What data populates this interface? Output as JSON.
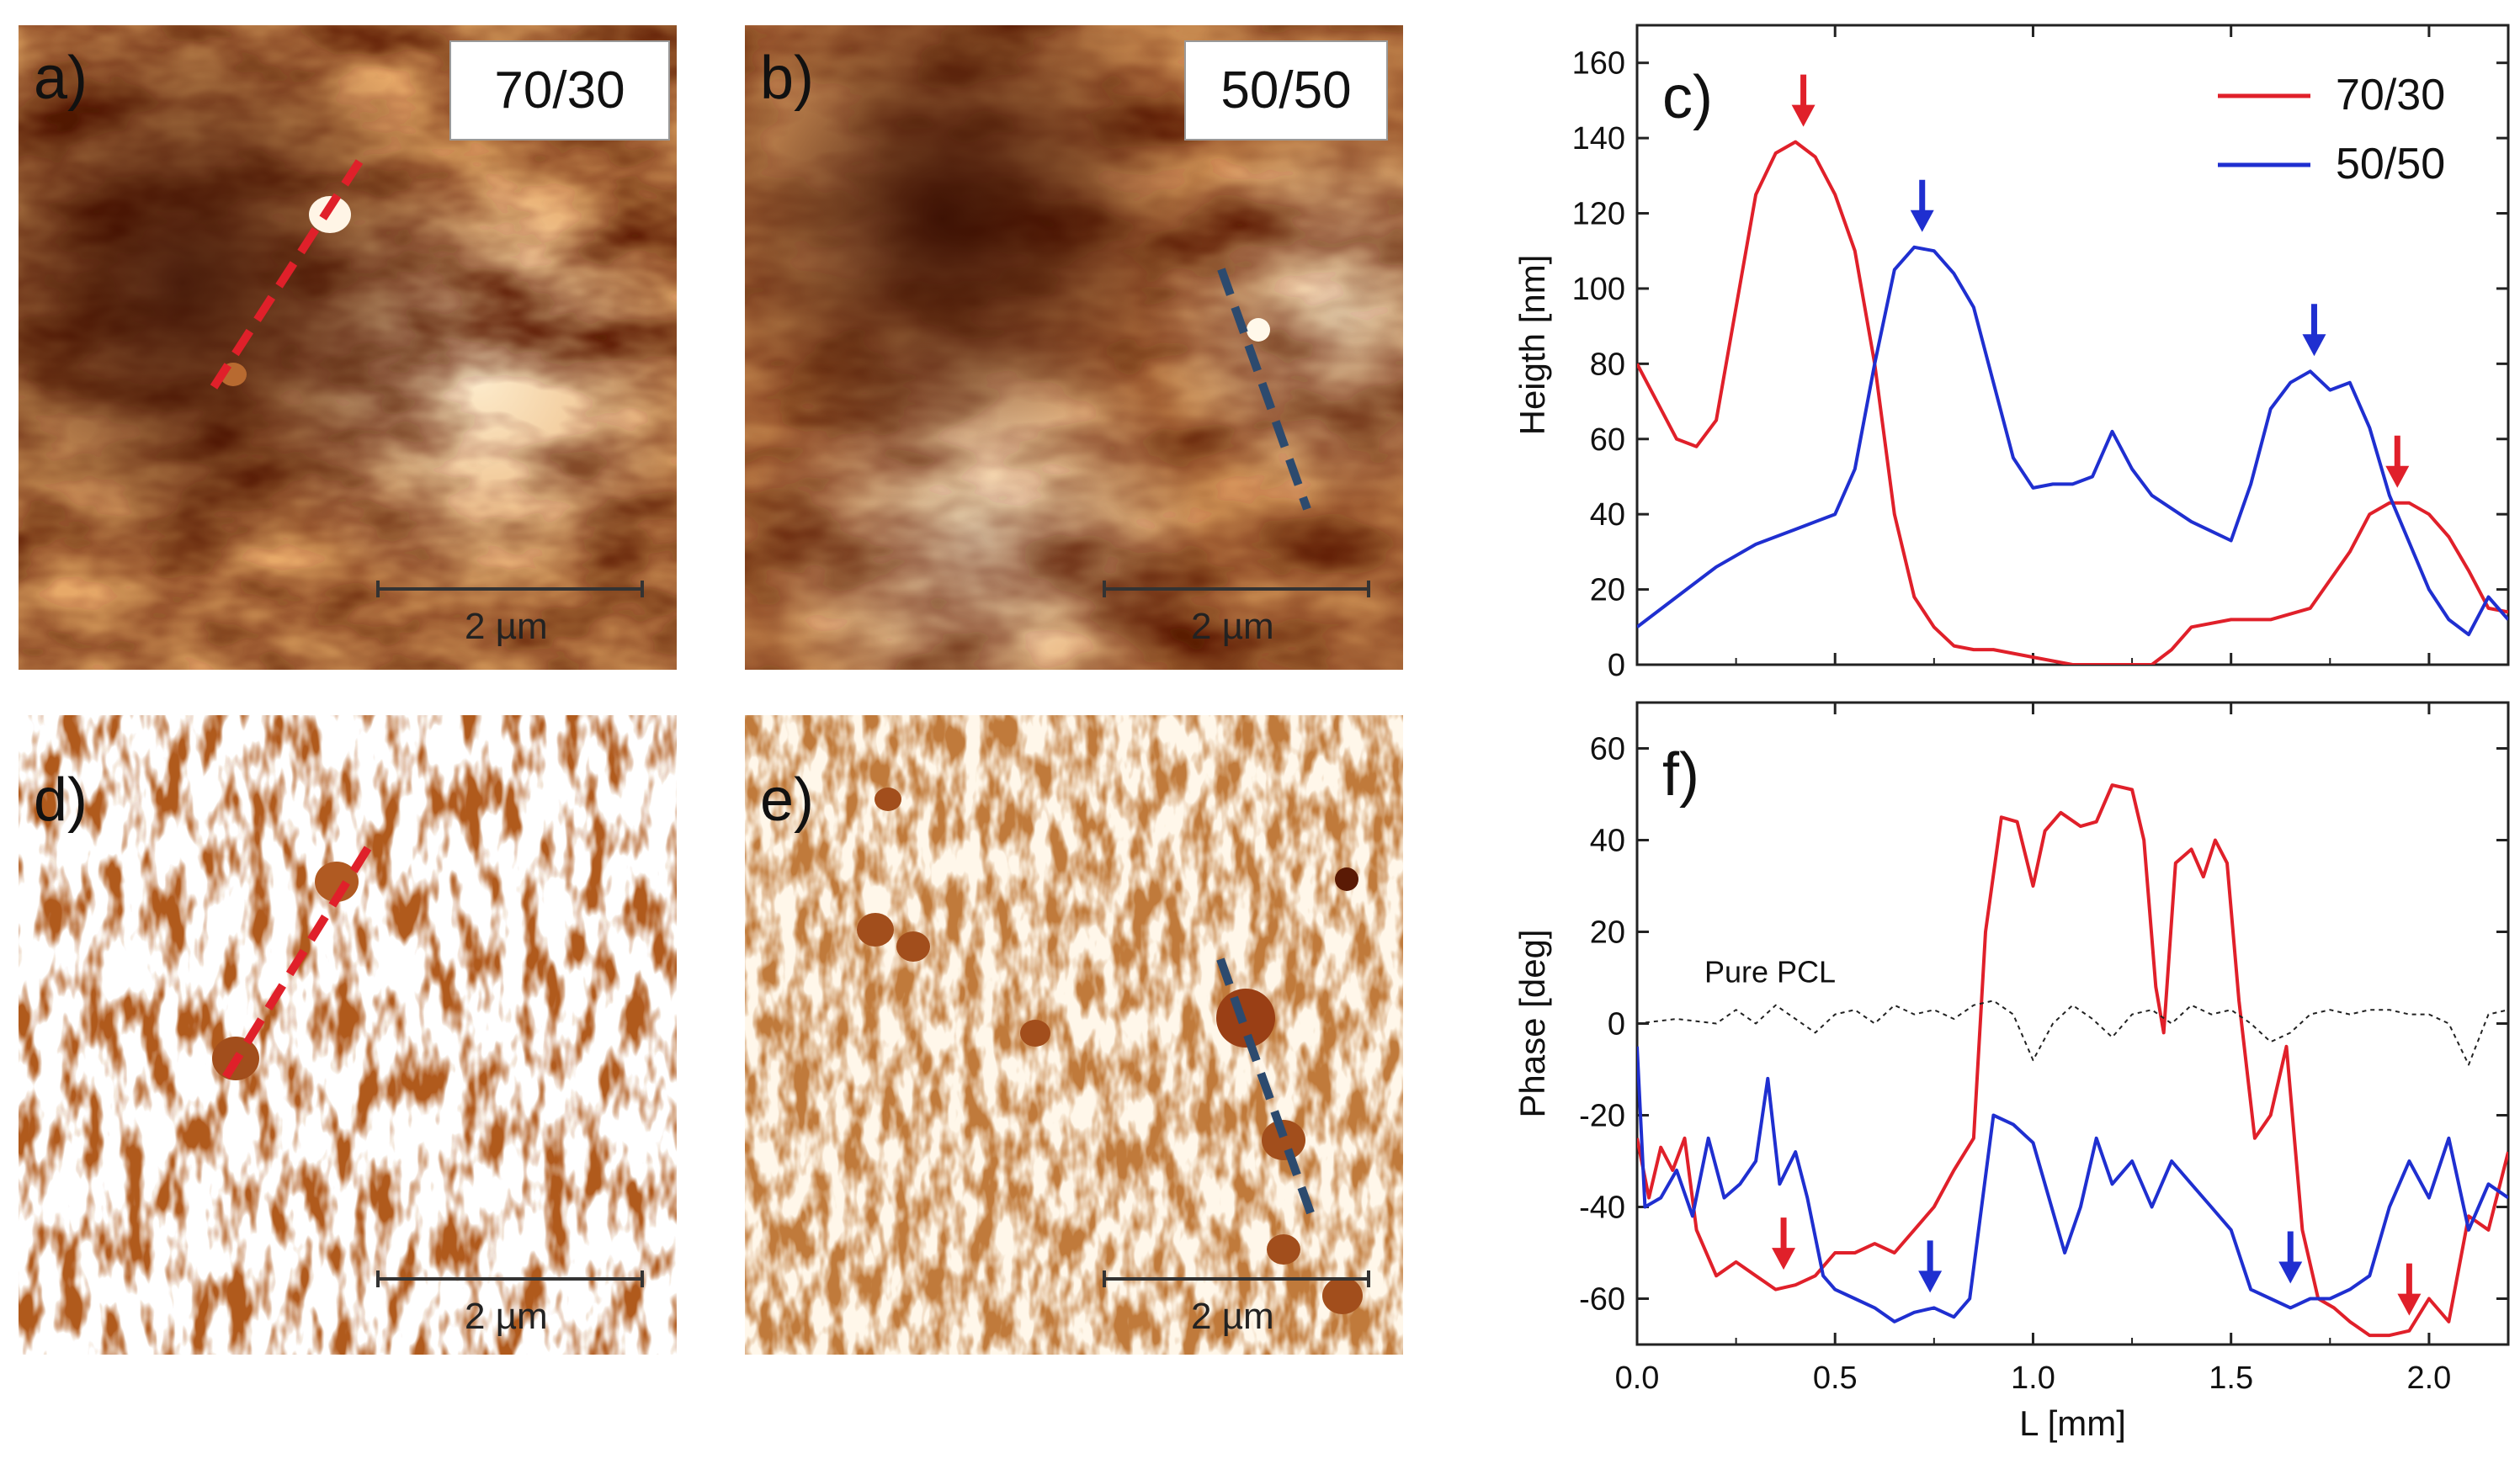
{
  "panels": {
    "a": {
      "label": "a)",
      "ratio": "70/30",
      "scale": "2 µm"
    },
    "b": {
      "label": "b)",
      "ratio": "50/50",
      "scale": "2 µm"
    },
    "d": {
      "label": "d)",
      "scale": "2 µm"
    },
    "e": {
      "label": "e)",
      "scale": "2 µm"
    }
  },
  "colors": {
    "red": "#e0202a",
    "blue": "#1f2fd0",
    "dash_blue": "#2c4a6e",
    "afm_dark": "#4a1505",
    "afm_light": "#ffe9c8",
    "phase_dark": "#a0501a",
    "phase_light": "#fff8ee"
  },
  "chart_data": [
    {
      "type": "line",
      "panel_label": "c)",
      "ylabel": "Heigth [nm]",
      "xlabel": "",
      "xlim": [
        0,
        2.2
      ],
      "ylim": [
        0,
        170
      ],
      "xticks": [
        0.0,
        0.5,
        1.0,
        1.5,
        2.0
      ],
      "yticks": [
        0,
        20,
        40,
        60,
        80,
        100,
        120,
        140,
        160
      ],
      "legend_position": "top-right",
      "series": [
        {
          "name": "70/30",
          "color": "#e0202a",
          "x": [
            0.0,
            0.05,
            0.1,
            0.15,
            0.2,
            0.25,
            0.3,
            0.35,
            0.4,
            0.45,
            0.5,
            0.55,
            0.6,
            0.65,
            0.7,
            0.75,
            0.8,
            0.85,
            0.9,
            1.0,
            1.1,
            1.2,
            1.25,
            1.3,
            1.35,
            1.4,
            1.5,
            1.6,
            1.7,
            1.8,
            1.85,
            1.9,
            1.95,
            2.0,
            2.05,
            2.1,
            2.15,
            2.2
          ],
          "y": [
            80,
            70,
            60,
            58,
            65,
            95,
            125,
            136,
            139,
            135,
            125,
            110,
            80,
            40,
            18,
            10,
            5,
            4,
            4,
            2,
            0,
            0,
            0,
            0,
            4,
            10,
            12,
            12,
            15,
            30,
            40,
            43,
            43,
            40,
            34,
            25,
            15,
            14
          ]
        },
        {
          "name": "50/50",
          "color": "#1f2fd0",
          "x": [
            0.0,
            0.1,
            0.2,
            0.3,
            0.4,
            0.5,
            0.55,
            0.6,
            0.65,
            0.7,
            0.75,
            0.8,
            0.85,
            0.9,
            0.95,
            1.0,
            1.05,
            1.1,
            1.15,
            1.2,
            1.25,
            1.3,
            1.4,
            1.5,
            1.55,
            1.6,
            1.65,
            1.7,
            1.75,
            1.8,
            1.85,
            1.9,
            2.0,
            2.05,
            2.1,
            2.15,
            2.2
          ],
          "y": [
            10,
            18,
            26,
            32,
            36,
            40,
            52,
            80,
            105,
            111,
            110,
            104,
            95,
            75,
            55,
            47,
            48,
            48,
            50,
            62,
            52,
            45,
            38,
            33,
            48,
            68,
            75,
            78,
            73,
            75,
            63,
            45,
            20,
            12,
            8,
            18,
            12
          ]
        }
      ],
      "arrows": [
        {
          "series": "70/30",
          "x": 0.42,
          "y": 139
        },
        {
          "series": "50/50",
          "x": 0.72,
          "y": 111
        },
        {
          "series": "50/50",
          "x": 1.71,
          "y": 78
        },
        {
          "series": "70/30",
          "x": 1.92,
          "y": 43
        }
      ]
    },
    {
      "type": "line",
      "panel_label": "f)",
      "ylabel": "Phase [deg]",
      "xlabel": "L [mm]",
      "xlim": [
        0,
        2.2
      ],
      "ylim": [
        -70,
        70
      ],
      "xticks": [
        0.0,
        0.5,
        1.0,
        1.5,
        2.0
      ],
      "xticklabels": [
        "0.0",
        "0.5",
        "1.0",
        "1.5",
        "2.0"
      ],
      "yticks": [
        -60,
        -40,
        -20,
        0,
        20,
        40,
        60
      ],
      "annotation": "Pure PCL",
      "series": [
        {
          "name": "70/30",
          "color": "#e0202a",
          "x": [
            0.0,
            0.03,
            0.06,
            0.09,
            0.12,
            0.15,
            0.2,
            0.25,
            0.3,
            0.35,
            0.4,
            0.45,
            0.5,
            0.55,
            0.6,
            0.65,
            0.7,
            0.75,
            0.8,
            0.85,
            0.88,
            0.92,
            0.96,
            1.0,
            1.03,
            1.07,
            1.12,
            1.16,
            1.2,
            1.25,
            1.28,
            1.31,
            1.33,
            1.36,
            1.4,
            1.43,
            1.46,
            1.49,
            1.52,
            1.56,
            1.6,
            1.64,
            1.68,
            1.72,
            1.76,
            1.8,
            1.85,
            1.9,
            1.95,
            2.0,
            2.05,
            2.1,
            2.15,
            2.2
          ],
          "y": [
            -25,
            -38,
            -27,
            -32,
            -25,
            -45,
            -55,
            -52,
            -55,
            -58,
            -57,
            -55,
            -50,
            -50,
            -48,
            -50,
            -45,
            -40,
            -32,
            -25,
            20,
            45,
            44,
            30,
            42,
            46,
            43,
            44,
            52,
            51,
            40,
            8,
            -2,
            35,
            38,
            32,
            40,
            35,
            5,
            -25,
            -20,
            -5,
            -45,
            -60,
            -62,
            -65,
            -68,
            -68,
            -67,
            -60,
            -65,
            -42,
            -45,
            -28
          ]
        },
        {
          "name": "50/50",
          "color": "#1f2fd0",
          "x": [
            0.0,
            0.02,
            0.06,
            0.1,
            0.14,
            0.18,
            0.22,
            0.26,
            0.3,
            0.33,
            0.36,
            0.4,
            0.43,
            0.47,
            0.5,
            0.55,
            0.6,
            0.65,
            0.7,
            0.75,
            0.8,
            0.84,
            0.87,
            0.9,
            0.95,
            1.0,
            1.04,
            1.08,
            1.12,
            1.16,
            1.2,
            1.25,
            1.3,
            1.35,
            1.4,
            1.45,
            1.5,
            1.55,
            1.6,
            1.65,
            1.7,
            1.75,
            1.8,
            1.85,
            1.9,
            1.95,
            2.0,
            2.05,
            2.1,
            2.15,
            2.2
          ],
          "y": [
            -5,
            -40,
            -38,
            -32,
            -42,
            -25,
            -38,
            -35,
            -30,
            -12,
            -35,
            -28,
            -38,
            -55,
            -58,
            -60,
            -62,
            -65,
            -63,
            -62,
            -64,
            -60,
            -40,
            -20,
            -22,
            -26,
            -38,
            -50,
            -40,
            -25,
            -35,
            -30,
            -40,
            -30,
            -35,
            -40,
            -45,
            -58,
            -60,
            -62,
            -60,
            -60,
            -58,
            -55,
            -40,
            -30,
            -38,
            -25,
            -45,
            -35,
            -38
          ]
        },
        {
          "name": "Pure PCL",
          "color": "#222222",
          "dashed": true,
          "x": [
            0.0,
            0.1,
            0.2,
            0.25,
            0.3,
            0.35,
            0.4,
            0.45,
            0.5,
            0.55,
            0.6,
            0.65,
            0.7,
            0.75,
            0.8,
            0.85,
            0.9,
            0.95,
            1.0,
            1.05,
            1.1,
            1.15,
            1.2,
            1.25,
            1.3,
            1.35,
            1.4,
            1.45,
            1.5,
            1.55,
            1.6,
            1.65,
            1.7,
            1.75,
            1.8,
            1.85,
            1.9,
            1.95,
            2.0,
            2.05,
            2.1,
            2.15,
            2.2
          ],
          "y": [
            0,
            1,
            0,
            3,
            0,
            4,
            1,
            -2,
            2,
            3,
            0,
            4,
            2,
            3,
            1,
            4,
            5,
            2,
            -8,
            0,
            4,
            1,
            -3,
            2,
            3,
            0,
            4,
            2,
            3,
            0,
            -4,
            -2,
            2,
            3,
            2,
            3,
            3,
            2,
            2,
            0,
            -9,
            2,
            3
          ]
        }
      ],
      "arrows": [
        {
          "series": "70/30",
          "x": 0.37,
          "y": -57
        },
        {
          "series": "50/50",
          "x": 0.74,
          "y": -62
        },
        {
          "series": "50/50",
          "x": 1.65,
          "y": -60
        },
        {
          "series": "70/30",
          "x": 1.95,
          "y": -67
        }
      ]
    }
  ]
}
